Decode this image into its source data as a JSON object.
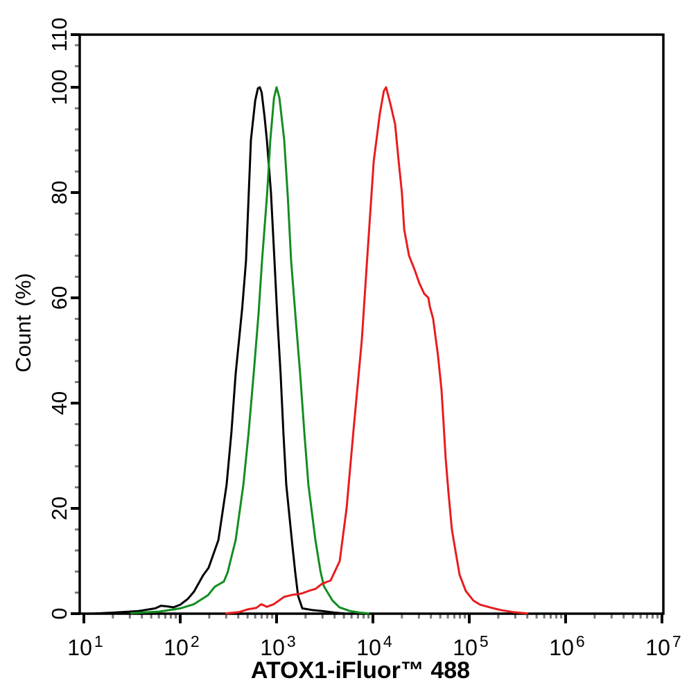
{
  "figure": {
    "background": "#ffffff",
    "frame_color": "#000000",
    "minor_tick_color": "#7a7a7a"
  },
  "chart_data": {
    "type": "line",
    "subtype": "flow-cytometry-overlay-histogram",
    "title": "",
    "xlabel": "ATOX1-iFluor™ 488",
    "ylabel": "Count (%)",
    "x_scale": "log10",
    "xlim": [
      10,
      10000000
    ],
    "ylim": [
      0,
      110
    ],
    "grid": false,
    "legend_position": "none",
    "x_ticks": {
      "base": "10",
      "exponents": [
        1,
        2,
        3,
        4,
        5,
        6,
        7
      ],
      "minor_mantissas": [
        2,
        3,
        4,
        5,
        6,
        7,
        8,
        9
      ]
    },
    "y_ticks": {
      "major": [
        0,
        20,
        40,
        60,
        80,
        100,
        110
      ],
      "minor_step": 4
    },
    "series": [
      {
        "name": "black",
        "color": "#000000",
        "peak_x": 670,
        "peak_y": 100,
        "points": [
          [
            12,
            0
          ],
          [
            20,
            0.2
          ],
          [
            37,
            0.5
          ],
          [
            55,
            1.0
          ],
          [
            63,
            1.5
          ],
          [
            72,
            1.4
          ],
          [
            85,
            1.2
          ],
          [
            100,
            1.7
          ],
          [
            120,
            2.8
          ],
          [
            139,
            4.2
          ],
          [
            173,
            7.3
          ],
          [
            197,
            8.7
          ],
          [
            249,
            14
          ],
          [
            303,
            24.5
          ],
          [
            340,
            34.5
          ],
          [
            376,
            45.6
          ],
          [
            440,
            58
          ],
          [
            482,
            67
          ],
          [
            515,
            80
          ],
          [
            542,
            90
          ],
          [
            600,
            97.5
          ],
          [
            640,
            99.8
          ],
          [
            670,
            100
          ],
          [
            700,
            99
          ],
          [
            750,
            94.5
          ],
          [
            793,
            90
          ],
          [
            875,
            80
          ],
          [
            951,
            67
          ],
          [
            1020,
            56
          ],
          [
            1100,
            45.6
          ],
          [
            1180,
            34
          ],
          [
            1260,
            24.5
          ],
          [
            1440,
            14
          ],
          [
            1560,
            8
          ],
          [
            1670,
            3.4
          ],
          [
            1850,
            1.0
          ],
          [
            2330,
            0.7
          ],
          [
            3000,
            0.5
          ],
          [
            4000,
            0.2
          ],
          [
            5000,
            0.05
          ]
        ]
      },
      {
        "name": "green",
        "color": "#128d20",
        "peak_x": 1000,
        "peak_y": 100,
        "points": [
          [
            31,
            0.1
          ],
          [
            61,
            0.4
          ],
          [
            100,
            1.0
          ],
          [
            139,
            1.8
          ],
          [
            194,
            3.5
          ],
          [
            228,
            5.1
          ],
          [
            284,
            6.1
          ],
          [
            310,
            7.8
          ],
          [
            376,
            14
          ],
          [
            452,
            24.5
          ],
          [
            510,
            34
          ],
          [
            579,
            45.6
          ],
          [
            650,
            57
          ],
          [
            706,
            67
          ],
          [
            800,
            80
          ],
          [
            861,
            90
          ],
          [
            940,
            98
          ],
          [
            1000,
            100
          ],
          [
            1070,
            98
          ],
          [
            1150,
            93
          ],
          [
            1200,
            90
          ],
          [
            1310,
            79
          ],
          [
            1416,
            67
          ],
          [
            1580,
            56
          ],
          [
            1757,
            45.6
          ],
          [
            1950,
            34
          ],
          [
            2140,
            24.5
          ],
          [
            2530,
            14
          ],
          [
            2860,
            8
          ],
          [
            3100,
            5.2
          ],
          [
            3800,
            2.5
          ],
          [
            4500,
            1.2
          ],
          [
            5800,
            0.5
          ],
          [
            7300,
            0.2
          ],
          [
            9000,
            0.05
          ]
        ]
      },
      {
        "name": "red",
        "color": "#e81c1d",
        "peak_x": 13700,
        "peak_y": 100,
        "shoulder": {
          "x": 35000,
          "y": 60
        },
        "points": [
          [
            300,
            0.05
          ],
          [
            410,
            0.3
          ],
          [
            499,
            0.8
          ],
          [
            618,
            1.1
          ],
          [
            695,
            1.8
          ],
          [
            793,
            1.3
          ],
          [
            936,
            1.8
          ],
          [
            1200,
            3.2
          ],
          [
            1490,
            3.6
          ],
          [
            1800,
            3.8
          ],
          [
            2210,
            4.4
          ],
          [
            2530,
            4.7
          ],
          [
            2980,
            5.7
          ],
          [
            3640,
            6.3
          ],
          [
            4020,
            8
          ],
          [
            4520,
            10
          ],
          [
            5330,
            20
          ],
          [
            6300,
            35
          ],
          [
            7670,
            52
          ],
          [
            8760,
            68
          ],
          [
            10200,
            86
          ],
          [
            11800,
            95
          ],
          [
            13000,
            99.3
          ],
          [
            13700,
            100
          ],
          [
            15100,
            97
          ],
          [
            17000,
            93
          ],
          [
            18500,
            86
          ],
          [
            20000,
            80
          ],
          [
            21100,
            73
          ],
          [
            23700,
            68
          ],
          [
            27000,
            65.4
          ],
          [
            30300,
            62.8
          ],
          [
            34000,
            60.8
          ],
          [
            35800,
            60.4
          ],
          [
            37600,
            60.0
          ],
          [
            38900,
            58.4
          ],
          [
            42200,
            56
          ],
          [
            47400,
            49
          ],
          [
            51500,
            42.6
          ],
          [
            54200,
            36
          ],
          [
            56900,
            29.4
          ],
          [
            60800,
            23
          ],
          [
            66000,
            16
          ],
          [
            71800,
            12
          ],
          [
            79300,
            7.4
          ],
          [
            92000,
            4.3
          ],
          [
            110000,
            2.5
          ],
          [
            130000,
            1.7
          ],
          [
            164000,
            1.2
          ],
          [
            210000,
            0.7
          ],
          [
            284000,
            0.3
          ],
          [
            400000,
            0.05
          ]
        ]
      }
    ]
  }
}
